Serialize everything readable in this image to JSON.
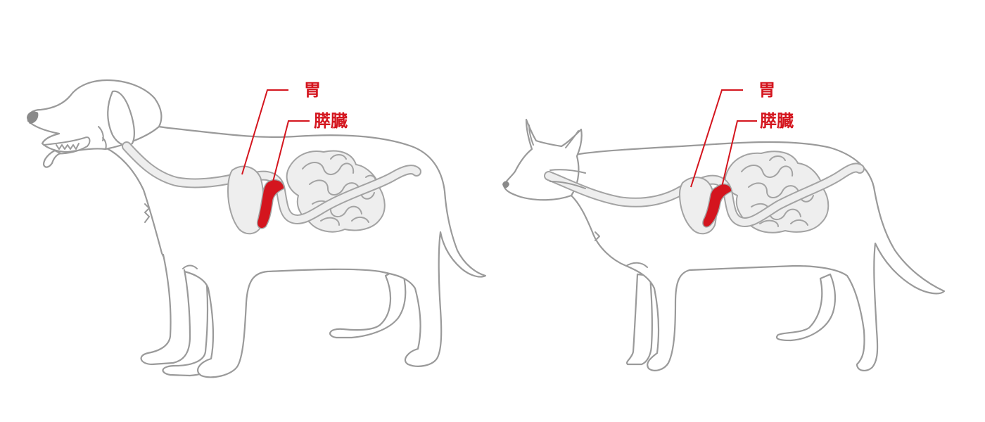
{
  "accent_color": "#d4151e",
  "outline_color": "#9a9a9a",
  "organ_fill": "#eeeeee",
  "dog": {
    "stomach_label": "胃",
    "pancreas_label": "膵臓"
  },
  "cat": {
    "stomach_label": "胃",
    "pancreas_label": "膵臓"
  }
}
